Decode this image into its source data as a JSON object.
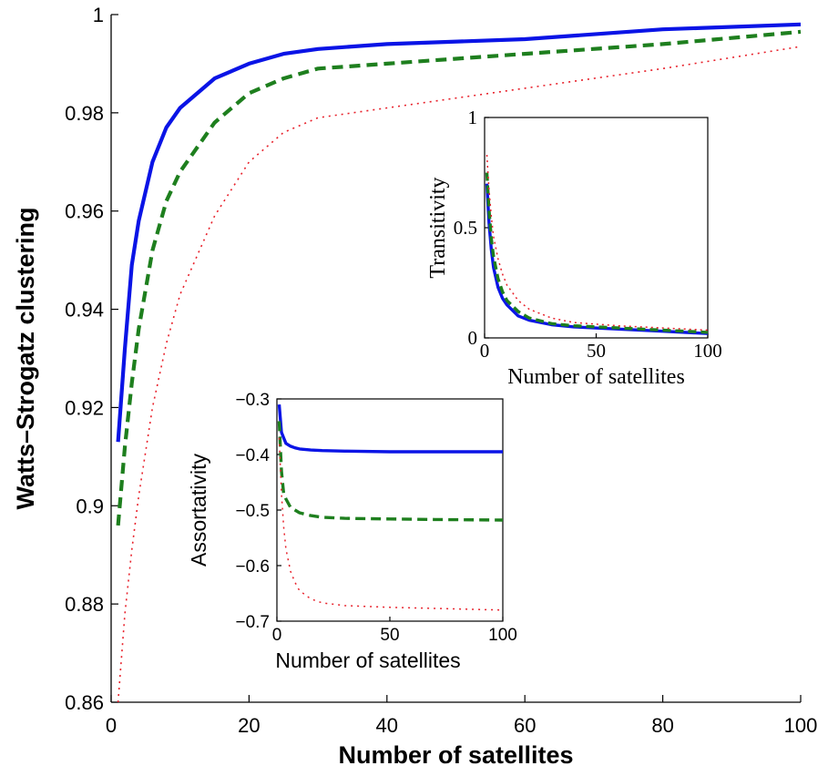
{
  "chart_data": [
    {
      "id": "main",
      "type": "line",
      "xlabel": "Number of satellites",
      "ylabel": "Watts–Strogatz clustering",
      "xlim": [
        0,
        100
      ],
      "ylim": [
        0.86,
        1
      ],
      "xticks": [
        0,
        20,
        40,
        60,
        80,
        100
      ],
      "yticks": [
        0.86,
        0.88,
        0.9,
        0.92,
        0.94,
        0.96,
        0.98,
        1
      ],
      "ytick_labels": [
        "0.86",
        "0.88",
        "0.9",
        "0.92",
        "0.94",
        "0.96",
        "0.98",
        "1"
      ],
      "grid": false,
      "series": [
        {
          "style": "solid",
          "color": "#0a14e6",
          "x": [
            1,
            2,
            3,
            4,
            6,
            8,
            10,
            15,
            20,
            25,
            30,
            40,
            60,
            80,
            100
          ],
          "y": [
            0.913,
            0.932,
            0.949,
            0.958,
            0.97,
            0.977,
            0.981,
            0.987,
            0.99,
            0.992,
            0.993,
            0.994,
            0.995,
            0.997,
            0.998
          ]
        },
        {
          "style": "dashed",
          "color": "#1e7f1e",
          "x": [
            1,
            2,
            3,
            4,
            6,
            8,
            10,
            15,
            20,
            25,
            30,
            40,
            60,
            80,
            100
          ],
          "y": [
            0.896,
            0.912,
            0.925,
            0.936,
            0.952,
            0.962,
            0.968,
            0.978,
            0.984,
            0.987,
            0.989,
            0.99,
            0.992,
            0.994,
            0.9965
          ]
        },
        {
          "style": "dotted",
          "color": "#e8212b",
          "x": [
            1,
            2,
            3,
            4,
            6,
            8,
            10,
            15,
            20,
            25,
            30,
            40,
            60,
            80,
            100
          ],
          "y": [
            0.86,
            0.878,
            0.891,
            0.902,
            0.92,
            0.933,
            0.943,
            0.959,
            0.97,
            0.976,
            0.979,
            0.981,
            0.985,
            0.989,
            0.9935
          ]
        }
      ]
    },
    {
      "id": "inset-transitivity",
      "type": "line",
      "xlabel": "Number of satellites",
      "ylabel": "Transitivity",
      "xlim": [
        0,
        100
      ],
      "ylim": [
        0,
        1
      ],
      "xticks": [
        0,
        50,
        100
      ],
      "yticks": [
        0,
        0.5,
        1
      ],
      "ytick_labels": [
        "0",
        "0.5",
        "1"
      ],
      "grid": false,
      "series": [
        {
          "style": "solid",
          "color": "#0a14e6",
          "x": [
            1,
            2,
            3,
            4,
            6,
            8,
            10,
            15,
            20,
            30,
            40,
            60,
            80,
            100
          ],
          "y": [
            0.7,
            0.52,
            0.4,
            0.32,
            0.23,
            0.18,
            0.15,
            0.1,
            0.08,
            0.06,
            0.05,
            0.04,
            0.03,
            0.02
          ]
        },
        {
          "style": "dashed",
          "color": "#1e7f1e",
          "x": [
            1,
            2,
            3,
            4,
            6,
            8,
            10,
            15,
            20,
            30,
            40,
            60,
            80,
            100
          ],
          "y": [
            0.75,
            0.58,
            0.45,
            0.37,
            0.27,
            0.21,
            0.17,
            0.12,
            0.09,
            0.065,
            0.055,
            0.045,
            0.035,
            0.025
          ]
        },
        {
          "style": "dotted",
          "color": "#e8212b",
          "x": [
            1,
            2,
            3,
            4,
            6,
            8,
            10,
            15,
            20,
            30,
            40,
            60,
            80,
            100
          ],
          "y": [
            0.83,
            0.67,
            0.55,
            0.46,
            0.36,
            0.29,
            0.24,
            0.17,
            0.13,
            0.09,
            0.07,
            0.055,
            0.045,
            0.035
          ]
        }
      ]
    },
    {
      "id": "inset-assortativity",
      "type": "line",
      "xlabel": "Number of satellites",
      "ylabel": "Assortativity",
      "xlim": [
        0,
        100
      ],
      "ylim": [
        -0.7,
        -0.3
      ],
      "xticks": [
        0,
        50,
        100
      ],
      "yticks": [
        -0.7,
        -0.6,
        -0.5,
        -0.4,
        -0.3
      ],
      "ytick_labels": [
        "−0.7",
        "−0.6",
        "−0.5",
        "−0.4",
        "−0.3"
      ],
      "grid": false,
      "series": [
        {
          "style": "solid",
          "color": "#0a14e6",
          "x": [
            1,
            2,
            3,
            4,
            6,
            8,
            10,
            15,
            20,
            30,
            50,
            70,
            100
          ],
          "y": [
            -0.31,
            -0.36,
            -0.37,
            -0.38,
            -0.385,
            -0.388,
            -0.39,
            -0.392,
            -0.393,
            -0.394,
            -0.395,
            -0.395,
            -0.395
          ]
        },
        {
          "style": "dashed",
          "color": "#1e7f1e",
          "x": [
            1,
            2,
            3,
            4,
            6,
            8,
            10,
            15,
            20,
            30,
            50,
            70,
            100
          ],
          "y": [
            -0.34,
            -0.43,
            -0.47,
            -0.48,
            -0.495,
            -0.5,
            -0.505,
            -0.51,
            -0.513,
            -0.515,
            -0.516,
            -0.517,
            -0.518
          ]
        },
        {
          "style": "dotted",
          "color": "#e8212b",
          "x": [
            1,
            2,
            3,
            4,
            6,
            8,
            10,
            15,
            20,
            30,
            50,
            70,
            100
          ],
          "y": [
            -0.37,
            -0.47,
            -0.53,
            -0.57,
            -0.61,
            -0.63,
            -0.645,
            -0.66,
            -0.667,
            -0.672,
            -0.675,
            -0.677,
            -0.68
          ]
        }
      ]
    }
  ]
}
